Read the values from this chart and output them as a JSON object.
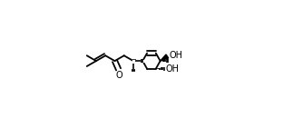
{
  "bg_color": "#ffffff",
  "line_color": "#000000",
  "lw": 1.3,
  "fs": 7.0,
  "figsize": [
    3.34,
    1.52
  ],
  "dpi": 100,
  "xlim": [
    0,
    1
  ],
  "ylim": [
    0,
    1
  ]
}
